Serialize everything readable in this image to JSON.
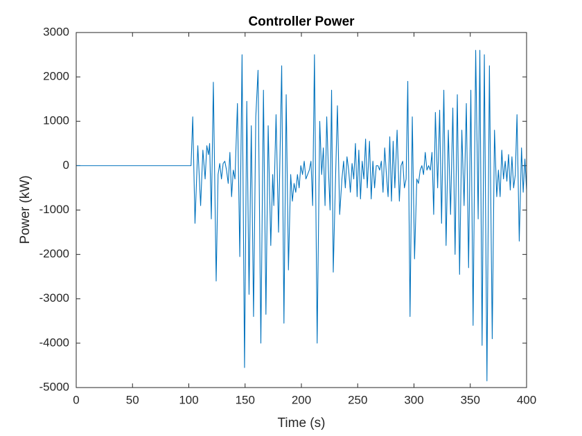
{
  "chart_data": {
    "type": "line",
    "title": "Controller Power",
    "xlabel": "Time (s)",
    "ylabel": "Power (kW)",
    "color": "#0072bd",
    "xlim": [
      0,
      400
    ],
    "xticks": [
      0,
      50,
      100,
      150,
      200,
      250,
      300,
      350,
      400
    ],
    "ylim": [
      -5000,
      3000
    ],
    "yticks": [
      -5000,
      -4000,
      -3000,
      -2000,
      -1000,
      0,
      1000,
      2000,
      3000
    ],
    "x": [
      0,
      102,
      103.5,
      105.5,
      108,
      110.5,
      112.5,
      114.5,
      116,
      117.5,
      118.5,
      120,
      121.8,
      124.3,
      126,
      127.5,
      129,
      130.5,
      132,
      133.5,
      135,
      136.5,
      138,
      139.5,
      141,
      143.2,
      145.3,
      147.3,
      149.5,
      151.5,
      153.5,
      155.5,
      157.5,
      159.5,
      161.5,
      164,
      166.3,
      168.5,
      170.5,
      172.8,
      174.5,
      175.5,
      177.5,
      179.7,
      182.5,
      184.5,
      186.5,
      188.5,
      190.5,
      192,
      193.5,
      195,
      196.5,
      198,
      199.5,
      201,
      202.5,
      204,
      205.5,
      207,
      208.5,
      210,
      211.6,
      214,
      216.3,
      218,
      219.5,
      221,
      222.5,
      224,
      225.5,
      226.8,
      228.3,
      230,
      232,
      234,
      236,
      237.5,
      239,
      240.5,
      242,
      243.5,
      245,
      246.5,
      248,
      249.5,
      251,
      252.5,
      254,
      255.5,
      257,
      258.5,
      260.5,
      262,
      263.5,
      265,
      266.5,
      268,
      269.5,
      271,
      272.5,
      274,
      275.5,
      277,
      278.5,
      280,
      281.5,
      283,
      285,
      287,
      288.5,
      290,
      291.5,
      293,
      294.5,
      296.5,
      298.5,
      300.5,
      302.5,
      304,
      305.5,
      307,
      308.5,
      310,
      311.5,
      313,
      314.5,
      316,
      317.5,
      319,
      321,
      322.8,
      324.5,
      326.5,
      328.5,
      330.5,
      332.5,
      334.5,
      336.5,
      338.5,
      340.5,
      342.5,
      344.5,
      346.5,
      348.5,
      350.5,
      352.5,
      354.8,
      357,
      358.5,
      360.5,
      362.5,
      364.8,
      367,
      369.5,
      371.5,
      373.5,
      375,
      376.5,
      378,
      379.5,
      381,
      382.5,
      384,
      385.5,
      387,
      388.5,
      390,
      391.5,
      393.5,
      395.5,
      397,
      398.5,
      400
    ],
    "values": [
      0,
      0,
      1100,
      -1300,
      450,
      -900,
      350,
      -300,
      450,
      250,
      500,
      -1200,
      1880,
      -2600,
      -200,
      50,
      -300,
      50,
      100,
      -100,
      -400,
      300,
      -700,
      -100,
      -300,
      1400,
      -2050,
      2500,
      -4550,
      1450,
      -2900,
      900,
      -3400,
      1100,
      2150,
      -4000,
      1700,
      -3350,
      900,
      -1800,
      -200,
      -900,
      1150,
      -1500,
      2250,
      -3550,
      1600,
      -2350,
      -200,
      -800,
      -400,
      -600,
      -200,
      -500,
      0,
      -200,
      100,
      -300,
      -200,
      -100,
      100,
      -900,
      2500,
      -4000,
      1000,
      -200,
      400,
      -900,
      1100,
      -100,
      -1000,
      1700,
      -2400,
      -600,
      1350,
      -1100,
      -300,
      100,
      -500,
      200,
      -100,
      -600,
      50,
      -300,
      500,
      -700,
      350,
      -750,
      100,
      -300,
      600,
      -500,
      550,
      -750,
      100,
      -500,
      0,
      0,
      -100,
      100,
      -600,
      400,
      -200,
      -700,
      650,
      -800,
      550,
      -500,
      800,
      -800,
      0,
      100,
      -500,
      -300,
      1900,
      -3400,
      1100,
      -2100,
      -300,
      -400,
      -100,
      0,
      -200,
      300,
      -100,
      0,
      -100,
      300,
      -1100,
      1200,
      -500,
      1250,
      -1300,
      1700,
      -1800,
      800,
      -1100,
      1300,
      -2000,
      1600,
      -2450,
      800,
      -900,
      1400,
      -2300,
      1700,
      -3600,
      2600,
      -1200,
      2600,
      -4050,
      2500,
      -4850,
      2250,
      -3900,
      800,
      -700,
      -100,
      -700,
      350,
      -300,
      100,
      -350,
      250,
      -550,
      200,
      -500,
      -200,
      1150,
      -1700,
      400,
      -600,
      150,
      -550
    ]
  }
}
